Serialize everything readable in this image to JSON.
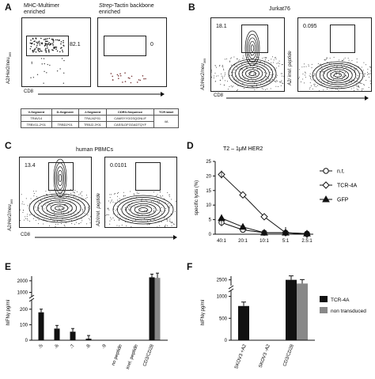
{
  "panels": {
    "A": {
      "label": "A",
      "plot1_title": "MHC-Multimer\nenriched",
      "plot1_value": "82.1",
      "plot2_title_italic": "Strep-",
      "plot2_title_rest": "Tactin backbone\nenriched",
      "plot2_value": "0",
      "ylabel": "A2/Her2/neu",
      "ylabel_sub": "369",
      "xlabel": "CD8",
      "table": {
        "headers": [
          "V-Segment",
          "D-Segment",
          "J-Segment",
          "CDR3-Sequence",
          "TCR label"
        ],
        "rows": [
          [
            "TRAV14",
            "",
            "TRAJ42*01",
            "CAMSYYGGSQGNLIF",
            "4A"
          ],
          [
            "TRBV11-2*01",
            "TRBD2*01",
            "TRBJ2-3*01",
            "CASSLDFGGADTQYF",
            ""
          ]
        ]
      }
    },
    "B": {
      "label": "B",
      "title": "Jurkat76",
      "plot1_value": "18.1",
      "plot2_value": "0.095",
      "ylabel1": "A2/Her2/neu",
      "ylabel1_sub": "369",
      "ylabel2": "A2/ irrel. peptide",
      "xlabel": "CD8"
    },
    "C": {
      "label": "C",
      "title": "human  PBMCs",
      "plot1_value": "13.4",
      "plot2_value": "0.0101",
      "ylabel1": "A2/Her2/neu",
      "ylabel1_sub": "369",
      "ylabel2": "A2/irrel. peptide",
      "xlabel": "CD8"
    },
    "D": {
      "label": "D",
      "title": "T2  –  1μM HER2"
    },
    "E": {
      "label": "E"
    },
    "F": {
      "label": "F"
    }
  },
  "chart_data": [
    {
      "panel": "D",
      "type": "line",
      "title": "T2  –  1μM HER2",
      "ylabel": "specific lysis (%)",
      "xlabel": "",
      "categories": [
        "40:1",
        "20:1",
        "10:1",
        "5:1",
        "2.5:1"
      ],
      "ylim": [
        0,
        25
      ],
      "yticks": [
        0,
        5,
        10,
        15,
        20,
        25
      ],
      "series": [
        {
          "name": "n.t.",
          "marker": "circle",
          "values": [
            4,
            1.5,
            0.5,
            0.5,
            0.2
          ]
        },
        {
          "name": "TCR-4A",
          "marker": "diamond",
          "values": [
            20.5,
            13.5,
            6,
            0.5,
            0
          ]
        },
        {
          "name": "GFP",
          "marker": "triangle",
          "values": [
            5.5,
            2.5,
            0.5,
            0.5,
            0.2
          ]
        }
      ],
      "legend": "right"
    },
    {
      "panel": "E",
      "type": "bar",
      "ylabel": "hIFNγ pg/ml",
      "yticks": [
        0,
        100,
        200,
        1000,
        2000
      ],
      "axis_break": [
        250,
        900
      ],
      "categories": [
        "-5",
        "-6",
        "-7",
        "-8",
        "-9",
        "no peptide",
        "irrel. peptide",
        "CD3/CD28"
      ],
      "values": [
        180,
        75,
        55,
        10,
        0,
        0,
        0,
        2300
      ],
      "values_second": [
        null,
        null,
        null,
        null,
        null,
        null,
        null,
        2250
      ]
    },
    {
      "panel": "F",
      "type": "bar",
      "ylabel": "hIFNγ pg/ml",
      "yticks": [
        0,
        500,
        1000,
        2500
      ],
      "axis_break": [
        1100,
        2300
      ],
      "categories": [
        "SKOV3 +A2",
        "SKOV3 -A2",
        "CD3/CD28"
      ],
      "series": [
        {
          "name": "TCR-4A",
          "color": "#111111",
          "values": [
            780,
            0,
            2500
          ]
        },
        {
          "name": "non transduced",
          "color": "#888888",
          "values": [
            null,
            null,
            2400
          ]
        }
      ],
      "legend": "right"
    }
  ],
  "colors": {
    "ink": "#111111",
    "grey_bar": "#888888"
  }
}
